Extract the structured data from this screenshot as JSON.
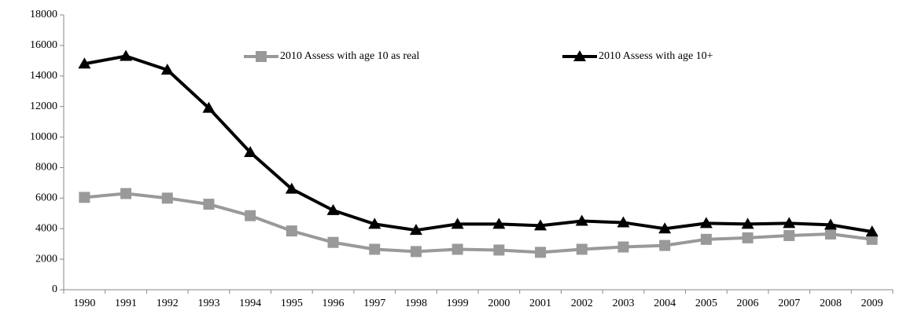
{
  "chart_data": {
    "type": "line",
    "categories": [
      "1990",
      "1991",
      "1992",
      "1993",
      "1994",
      "1995",
      "1996",
      "1997",
      "1998",
      "1999",
      "2000",
      "2001",
      "2002",
      "2003",
      "2004",
      "2005",
      "2006",
      "2007",
      "2008",
      "2009"
    ],
    "series": [
      {
        "name": "2010 Assess with age 10 as real",
        "color": "#999999",
        "marker": "square",
        "values": [
          6050,
          6300,
          6000,
          5600,
          4850,
          3850,
          3100,
          2650,
          2500,
          2650,
          2600,
          2450,
          2650,
          2800,
          2900,
          3300,
          3400,
          3550,
          3650,
          3300
        ]
      },
      {
        "name": "2010 Assess with age 10+",
        "color": "#000000",
        "marker": "triangle",
        "values": [
          14800,
          15300,
          14400,
          11900,
          9000,
          6600,
          5200,
          4300,
          3900,
          4300,
          4300,
          4200,
          4500,
          4400,
          4000,
          4350,
          4300,
          4350,
          4250,
          3800
        ]
      }
    ],
    "ylim": [
      0,
      18000
    ],
    "yticks": [
      0,
      2000,
      4000,
      6000,
      8000,
      10000,
      12000,
      14000,
      16000,
      18000
    ],
    "grid": false
  }
}
